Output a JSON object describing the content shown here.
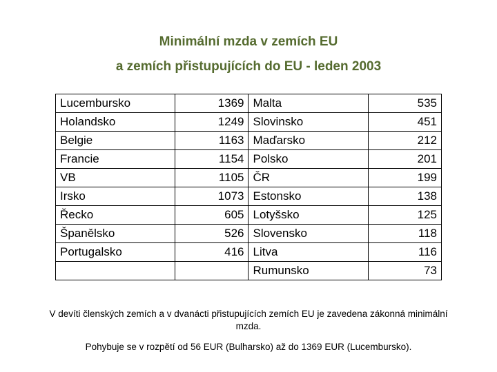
{
  "title": {
    "line1": "Minimální mzda v zemích EU",
    "line2": "a zemích přistupujících do EU - leden 2003"
  },
  "table": {
    "rows": [
      {
        "c1": "Lucembursko",
        "v1": "1369",
        "c2": "Malta",
        "v2": "535"
      },
      {
        "c1": "Holandsko",
        "v1": "1249",
        "c2": "Slovinsko",
        "v2": "451"
      },
      {
        "c1": "Belgie",
        "v1": "1163",
        "c2": "Maďarsko",
        "v2": "212"
      },
      {
        "c1": "Francie",
        "v1": "1154",
        "c2": "Polsko",
        "v2": "201"
      },
      {
        "c1": "VB",
        "v1": "1105",
        "c2": "ČR",
        "v2": "199"
      },
      {
        "c1": "Irsko",
        "v1": "1073",
        "c2": "Estonsko",
        "v2": "138"
      },
      {
        "c1": "Řecko",
        "v1": "605",
        "c2": "Lotyšsko",
        "v2": "125"
      },
      {
        "c1": "Španělsko",
        "v1": "526",
        "c2": "Slovensko",
        "v2": "118"
      },
      {
        "c1": "Portugalsko",
        "v1": "416",
        "c2": "Litva",
        "v2": "116"
      },
      {
        "c1": "",
        "v1": "",
        "c2": "Rumunsko",
        "v2": "73"
      }
    ]
  },
  "footnotes": {
    "p1": "V devíti členských zemích a v dvanácti přistupujících zemích EU je zavedena zákonná minimální mzda.",
    "p2": "Pohybuje se v rozpětí od 56 EUR (Bulharsko) až do 1369 EUR (Lucembursko)."
  },
  "colors": {
    "title": "#556b2f",
    "border": "#000000",
    "text": "#000000",
    "background": "#ffffff"
  }
}
